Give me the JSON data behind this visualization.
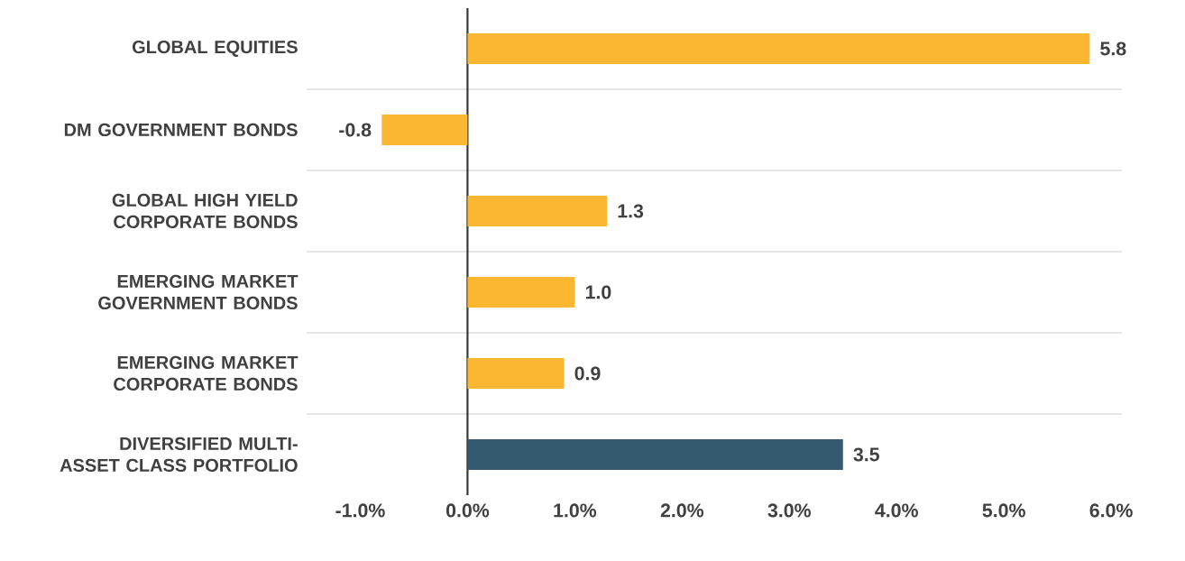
{
  "chart_data": {
    "type": "bar",
    "orientation": "horizontal",
    "categories": [
      "GLOBAL EQUITIES",
      "DM GOVERNMENT BONDS",
      "GLOBAL HIGH YIELD CORPORATE BONDS",
      "EMERGING MARKET GOVERNMENT BONDS",
      "EMERGING MARKET CORPORATE BONDS",
      "DIVERSIFIED MULTI-ASSET CLASS PORTFOLIO"
    ],
    "values": [
      5.8,
      -0.8,
      1.3,
      1.0,
      0.9,
      3.5
    ],
    "value_labels": [
      "5.8",
      "-0.8",
      "1.3",
      "1.0",
      "0.9",
      "3.5"
    ],
    "colors": [
      "#fbb731",
      "#fbb731",
      "#fbb731",
      "#fbb731",
      "#fbb731",
      "#34586e"
    ],
    "xlim": [
      -1.5,
      6.1
    ],
    "xticks": [
      {
        "value": -1,
        "label": "-1.0%"
      },
      {
        "value": 0,
        "label": "0.0%"
      },
      {
        "value": 1,
        "label": "1.0%"
      },
      {
        "value": 2,
        "label": "2.0%"
      },
      {
        "value": 3,
        "label": "3.0%"
      },
      {
        "value": 4,
        "label": "4.0%"
      },
      {
        "value": 5,
        "label": "5.0%"
      },
      {
        "value": 6,
        "label": "6.0%"
      }
    ],
    "ref_lines": [
      {
        "axis": "x",
        "value": 0,
        "color": "#333333"
      }
    ]
  }
}
